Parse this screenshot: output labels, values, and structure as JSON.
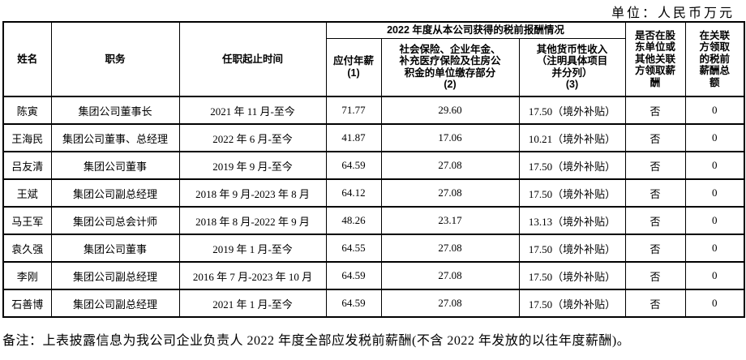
{
  "unit_label": "单位：人民币万元",
  "table": {
    "group_header": "2022 年度从本公司获得的税前报酬情况",
    "columns": [
      {
        "key": "name",
        "label": "姓名"
      },
      {
        "key": "position",
        "label": "职务"
      },
      {
        "key": "tenure",
        "label": "任职起止时间"
      },
      {
        "key": "annual-salary",
        "label": "应付年薪\n(1)"
      },
      {
        "key": "social-insurance",
        "label": "社会保险、企业年金、\n补充医疗保险及住房公\n积金的单位缴存部分\n(2)"
      },
      {
        "key": "other-income",
        "label": "其他货币性收入\n（注明具体项目\n并分列）\n(3)"
      },
      {
        "key": "paid-by-related",
        "label": "是否在股\n东单位或\n其他关联\n方领取薪\n酬"
      },
      {
        "key": "related-total",
        "label": "在关联\n方领取\n的税前\n薪酬总\n额"
      }
    ],
    "rows": [
      [
        "陈寅",
        "集团公司董事长",
        "2021 年 11 月-至今",
        "71.77",
        "29.60",
        "17.50（境外补贴）",
        "否",
        "0"
      ],
      [
        "王海民",
        "集团公司董事、总经理",
        "2022 年 6 月-至今",
        "41.87",
        "17.06",
        "10.21（境外补贴）",
        "否",
        "0"
      ],
      [
        "吕友清",
        "集团公司董事",
        "2019 年 9 月-至今",
        "64.59",
        "27.08",
        "17.50（境外补贴）",
        "否",
        "0"
      ],
      [
        "王斌",
        "集团公司副总经理",
        "2018 年 9 月-2023 年 8 月",
        "64.12",
        "27.08",
        "17.50（境外补贴）",
        "否",
        "0"
      ],
      [
        "马王军",
        "集团公司总会计师",
        "2018 年 8 月-2022 年 9 月",
        "48.26",
        "23.17",
        "13.13（境外补贴）",
        "否",
        "0"
      ],
      [
        "袁久强",
        "集团公司董事",
        "2019 年 1 月-至今",
        "64.55",
        "27.08",
        "17.50（境外补贴）",
        "否",
        "0"
      ],
      [
        "李刚",
        "集团公司副总经理",
        "2016 年 7 月-2023 年 10 月",
        "64.59",
        "27.08",
        "17.50（境外补贴）",
        "否",
        "0"
      ],
      [
        "石善博",
        "集团公司副总经理",
        "2021 年 1 月-至今",
        "64.59",
        "27.08",
        "17.50（境外补贴）",
        "否",
        "0"
      ]
    ]
  },
  "note": "备注：上表披露信息为我公司企业负责人 2022 年度全部应发税前薪酬(不含 2022 年发放的以往年度薪酬)。",
  "colors": {
    "text": "#000000",
    "border": "#000000",
    "background": "#ffffff"
  }
}
